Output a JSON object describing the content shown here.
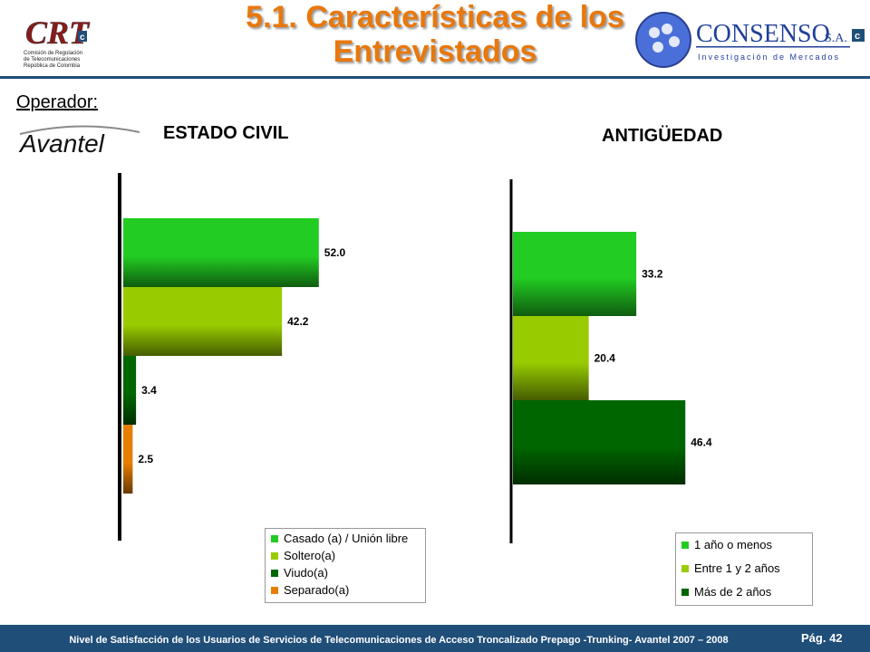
{
  "header": {
    "title_line1": "5.1. Características de los",
    "title_line2": "Entrevistados",
    "crt_logo": {
      "text": "CRT",
      "subtitle_lines": [
        "Comisión de Regulación",
        "de Telecomunicaciones",
        "República de Colombia"
      ]
    },
    "consenso_logo": {
      "text_main": "CONSENSO",
      "text_suffix": "S.A.",
      "tagline": "Investigación de Mercados"
    }
  },
  "operator": {
    "label": "Operador:",
    "logo_text": "Avantel"
  },
  "chart_data": [
    {
      "type": "bar",
      "orientation": "horizontal",
      "title": "ESTADO CIVIL",
      "categories": [
        "Casado (a) / Unión libre",
        "Soltero(a)",
        "Viudo(a)",
        "Separado(a)"
      ],
      "values": [
        52.0,
        42.2,
        3.4,
        2.5
      ],
      "value_labels": [
        "52.0",
        "42.2",
        "3.4",
        "2.5"
      ],
      "colors": [
        "#22cc22",
        "#99cc00",
        "#006600",
        "#e67e00"
      ],
      "legend_position": "bottom-right",
      "grid": false
    },
    {
      "type": "bar",
      "orientation": "horizontal",
      "title": "ANTIGÜEDAD",
      "categories": [
        "1 año o menos",
        "Entre 1 y 2 años",
        "Más de 2 años"
      ],
      "values": [
        33.2,
        20.4,
        46.4
      ],
      "value_labels": [
        "33.2",
        "20.4",
        "46.4"
      ],
      "colors": [
        "#22cc22",
        "#99cc00",
        "#006600"
      ],
      "legend_position": "bottom-right",
      "grid": false
    }
  ],
  "footer": {
    "text": "Nivel de Satisfacción de los Usuarios de Servicios de Telecomunicaciones de Acceso Troncalizado Prepago -Trunking- Avantel 2007 – 2008",
    "page": "Pág. 42"
  }
}
